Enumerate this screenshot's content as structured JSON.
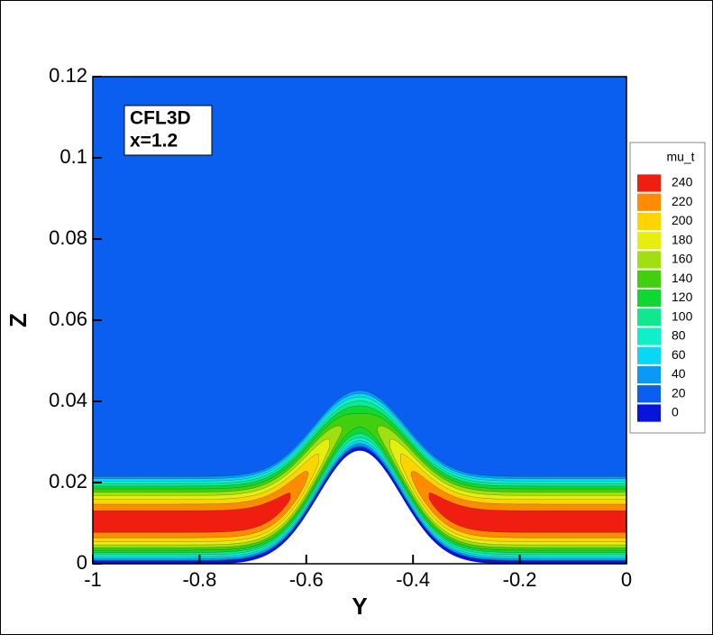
{
  "chart_data": {
    "type": "contour",
    "x_label": "Y",
    "y_label": "Z",
    "xlim": [
      -1,
      0
    ],
    "xticks": [
      -1,
      -0.8,
      -0.6,
      -0.4,
      -0.2,
      0
    ],
    "ylim": [
      0,
      0.12
    ],
    "yticks": [
      0,
      0.02,
      0.04,
      0.06,
      0.08,
      0.1,
      0.12
    ],
    "annotations": [
      "CFL3D",
      "x=1.2"
    ],
    "legend_title": "mu_t",
    "levels": [
      0,
      20,
      40,
      60,
      80,
      100,
      120,
      140,
      160,
      180,
      200,
      220,
      240
    ],
    "colors": [
      "#0a14d8",
      "#0a5ef0",
      "#0a9af5",
      "#08d8f5",
      "#10f0c8",
      "#10e890",
      "#10d830",
      "#40d010",
      "#a0e010",
      "#e6ee10",
      "#ffd400",
      "#ff8c00",
      "#f01e10"
    ]
  }
}
